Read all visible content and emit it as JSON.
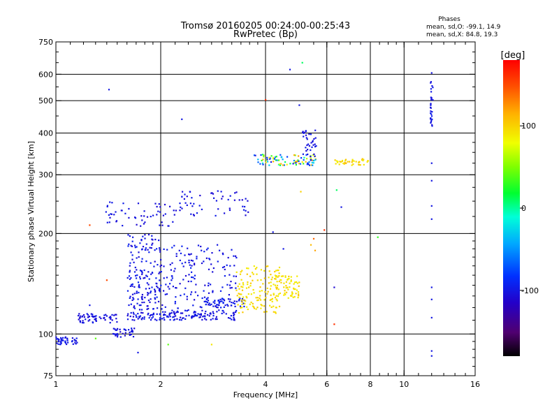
{
  "chart_data": {
    "type": "scatter",
    "title": "Tromsø 20160205 00:24:00-00:25:43",
    "subtitle": "RwPretec (Bp)",
    "stats": {
      "heading": "Phases",
      "line1": "mean, sd,O: -99.1, 14.9",
      "line2": "mean, sd,X:  84.8, 19.3"
    },
    "xlabel": "Frequency [MHz]",
    "ylabel": "Stationary phase Virtual Height [km]",
    "x_scale": "log",
    "y_scale": "log",
    "xlim": [
      1,
      16
    ],
    "ylim": [
      75,
      750
    ],
    "x_ticks": [
      {
        "value": 1,
        "label": "1"
      },
      {
        "value": 2,
        "label": "2"
      },
      {
        "value": 4,
        "label": "4"
      },
      {
        "value": 6,
        "label": "6"
      },
      {
        "value": 8,
        "label": "8"
      },
      {
        "value": 10,
        "label": "10"
      },
      {
        "value": 16,
        "label": "16"
      }
    ],
    "x_grid": [
      2,
      4,
      6,
      8,
      10
    ],
    "y_ticks": [
      {
        "value": 75,
        "label": "75"
      },
      {
        "value": 100,
        "label": "100"
      },
      {
        "value": 200,
        "label": "200"
      },
      {
        "value": 300,
        "label": "300"
      },
      {
        "value": 400,
        "label": "400"
      },
      {
        "value": 500,
        "label": "500"
      },
      {
        "value": 600,
        "label": "600"
      },
      {
        "value": 750,
        "label": "750"
      }
    ],
    "y_grid": [
      100,
      200,
      300,
      400,
      500,
      600
    ],
    "grid": true,
    "colorbar": {
      "label": "[deg]",
      "range": [
        -180,
        180
      ],
      "ticks": [
        {
          "value": 100,
          "label": "100"
        },
        {
          "value": 0,
          "label": "0"
        },
        {
          "value": -100,
          "label": "-100"
        }
      ]
    },
    "clusters": [
      {
        "x": [
          1.0,
          1.16
        ],
        "y": [
          93,
          98
        ],
        "phase": [
          -105,
          -95
        ],
        "n": 45
      },
      {
        "x": [
          1.15,
          1.5
        ],
        "y": [
          108,
          115
        ],
        "phase": [
          -110,
          -95
        ],
        "n": 60
      },
      {
        "x": [
          1.45,
          1.7
        ],
        "y": [
          98,
          104
        ],
        "phase": [
          -110,
          -95
        ],
        "n": 35
      },
      {
        "x": [
          1.6,
          2.0
        ],
        "y": [
          110,
          116
        ],
        "phase": [
          -110,
          -95
        ],
        "n": 45
      },
      {
        "x": [
          1.6,
          2.0
        ],
        "y": [
          118,
          200
        ],
        "phase": [
          -110,
          -90
        ],
        "n": 170
      },
      {
        "x": [
          2.0,
          3.3
        ],
        "y": [
          110,
          118
        ],
        "phase": [
          -110,
          -95
        ],
        "n": 110
      },
      {
        "x": [
          2.0,
          3.3
        ],
        "y": [
          118,
          185
        ],
        "phase": [
          -110,
          -90
        ],
        "n": 150
      },
      {
        "x": [
          2.6,
          3.5
        ],
        "y": [
          120,
          128
        ],
        "phase": [
          -105,
          -90
        ],
        "n": 60
      },
      {
        "x": [
          3.3,
          4.4
        ],
        "y": [
          115,
          160
        ],
        "phase": [
          85,
          105
        ],
        "n": 130
      },
      {
        "x": [
          4.2,
          5.0
        ],
        "y": [
          128,
          150
        ],
        "phase": [
          85,
          105
        ],
        "n": 70
      },
      {
        "x": [
          1.35,
          2.2
        ],
        "y": [
          210,
          250
        ],
        "phase": [
          -110,
          -95
        ],
        "n": 55
      },
      {
        "x": [
          2.2,
          3.6
        ],
        "y": [
          225,
          270
        ],
        "phase": [
          -110,
          -95
        ],
        "n": 55
      },
      {
        "x": [
          3.7,
          5.6
        ],
        "y": [
          320,
          345
        ],
        "phase": [
          -110,
          120
        ],
        "n": 95
      },
      {
        "x": [
          5.1,
          5.6
        ],
        "y": [
          340,
          410
        ],
        "phase": [
          -110,
          -95
        ],
        "n": 35
      },
      {
        "x": [
          6.2,
          7.9
        ],
        "y": [
          320,
          335
        ],
        "phase": [
          85,
          110
        ],
        "n": 40
      },
      {
        "x": [
          11.9,
          12.1
        ],
        "y": [
          420,
          630
        ],
        "phase": [
          -105,
          -95
        ],
        "n": 30
      }
    ],
    "points": [
      {
        "x": 1.42,
        "y": 540,
        "phase": -100
      },
      {
        "x": 2.3,
        "y": 440,
        "phase": -100
      },
      {
        "x": 4.0,
        "y": 503,
        "phase": 160
      },
      {
        "x": 5.0,
        "y": 485,
        "phase": -100
      },
      {
        "x": 4.7,
        "y": 620,
        "phase": -100
      },
      {
        "x": 5.1,
        "y": 650,
        "phase": 10
      },
      {
        "x": 8.4,
        "y": 195,
        "phase": 30
      },
      {
        "x": 12.0,
        "y": 325,
        "phase": -100
      },
      {
        "x": 12.0,
        "y": 288,
        "phase": -100
      },
      {
        "x": 12.0,
        "y": 242,
        "phase": -100
      },
      {
        "x": 12.0,
        "y": 221,
        "phase": -100
      },
      {
        "x": 12.0,
        "y": 138,
        "phase": -100
      },
      {
        "x": 12.0,
        "y": 127,
        "phase": -100
      },
      {
        "x": 12.0,
        "y": 112,
        "phase": -100
      },
      {
        "x": 12.0,
        "y": 89,
        "phase": -100
      },
      {
        "x": 12.0,
        "y": 86,
        "phase": -100
      },
      {
        "x": 6.3,
        "y": 107,
        "phase": 160
      },
      {
        "x": 6.3,
        "y": 138,
        "phase": -110
      },
      {
        "x": 2.1,
        "y": 93,
        "phase": 40
      },
      {
        "x": 2.8,
        "y": 93,
        "phase": 90
      },
      {
        "x": 1.25,
        "y": 212,
        "phase": 150
      },
      {
        "x": 1.25,
        "y": 122,
        "phase": -100
      },
      {
        "x": 1.4,
        "y": 145,
        "phase": 150
      },
      {
        "x": 1.3,
        "y": 97,
        "phase": 40
      },
      {
        "x": 1.72,
        "y": 88,
        "phase": -100
      },
      {
        "x": 5.4,
        "y": 185,
        "phase": 110
      },
      {
        "x": 5.55,
        "y": 178,
        "phase": 120
      },
      {
        "x": 5.5,
        "y": 193,
        "phase": 140
      },
      {
        "x": 5.05,
        "y": 267,
        "phase": 100
      },
      {
        "x": 6.6,
        "y": 240,
        "phase": -100
      },
      {
        "x": 4.2,
        "y": 202,
        "phase": -100
      },
      {
        "x": 4.5,
        "y": 180,
        "phase": -100
      },
      {
        "x": 5.9,
        "y": 205,
        "phase": 160
      },
      {
        "x": 6.4,
        "y": 270,
        "phase": 10
      }
    ]
  }
}
